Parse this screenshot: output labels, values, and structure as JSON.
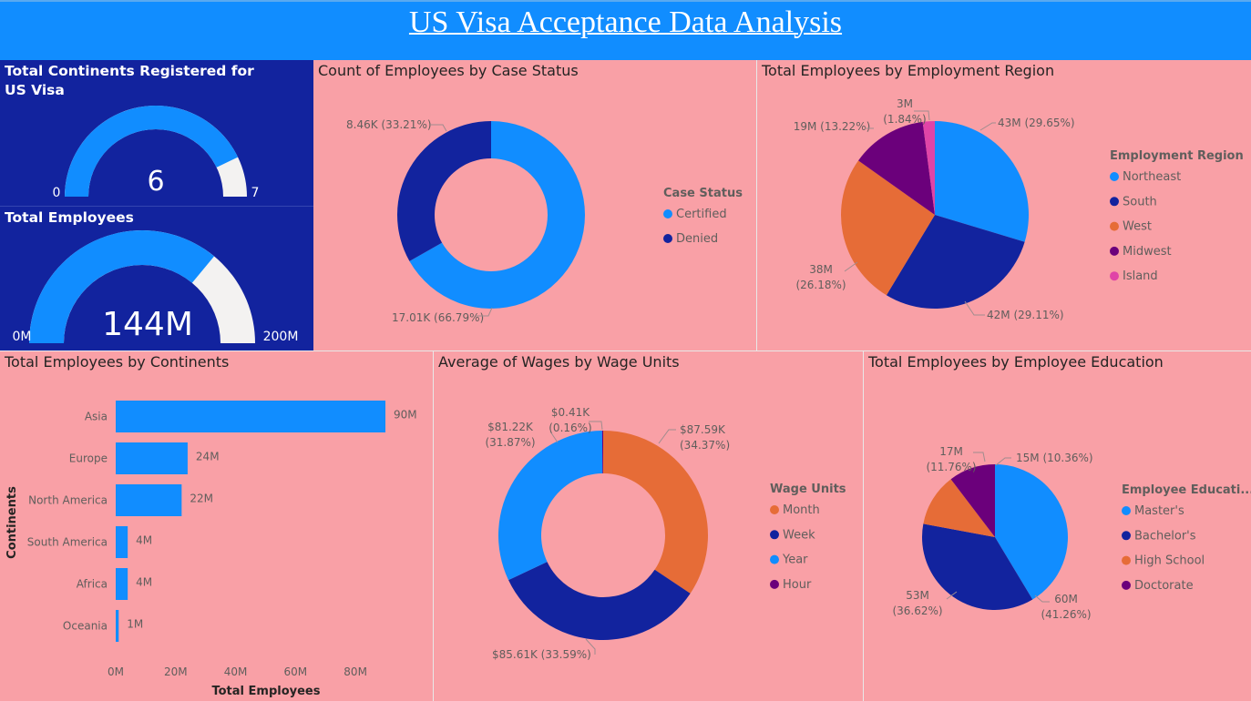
{
  "header": {
    "title": "US Visa Acceptance Data Analysis"
  },
  "colors": {
    "light_blue": "#118DFF",
    "dark_blue": "#12239E",
    "orange": "#E66C37",
    "purple": "#6B007B",
    "magenta": "#E044A7",
    "gauge_empty": "#F3F2F1",
    "background": "#F9A0A6"
  },
  "gauges": [
    {
      "title": "Total Continents Registered for US Visa",
      "value_label": "6",
      "min_label": "0",
      "max_label": "7",
      "value": 6,
      "min": 0,
      "max": 7
    },
    {
      "title": "Total Employees",
      "value_label": "144M",
      "min_label": "0M",
      "max_label": "200M",
      "value": 144,
      "min": 0,
      "max": 200
    }
  ],
  "chart_data": [
    {
      "id": "case_status",
      "type": "donut",
      "title": "Count of Employees by Case Status",
      "legend_title": "Case Status",
      "legend_placement": "right",
      "categories": [
        "Certified",
        "Denied"
      ],
      "values": [
        17.01,
        8.46
      ],
      "units": "K",
      "percents": [
        66.79,
        33.21
      ],
      "data_labels": [
        "17.01K (66.79%)",
        "8.46K (33.21%)"
      ]
    },
    {
      "id": "employment_region",
      "type": "pie",
      "title": "Total Employees by Employment Region",
      "legend_title": "Employment Region",
      "legend_placement": "right",
      "categories": [
        "Northeast",
        "South",
        "West",
        "Midwest",
        "Island"
      ],
      "values": [
        43,
        42,
        38,
        19,
        3
      ],
      "units": "M",
      "percents": [
        29.65,
        29.11,
        26.18,
        13.22,
        1.84
      ],
      "data_labels": [
        [
          "43M (29.65%)"
        ],
        [
          "42M (29.11%)"
        ],
        [
          "38M",
          "(26.18%)"
        ],
        [
          "19M (13.22%)"
        ],
        [
          "3M",
          "(1.84%)"
        ]
      ]
    },
    {
      "id": "continents",
      "type": "bar",
      "orientation": "horizontal",
      "title": "Total Employees by Continents",
      "categories": [
        "Asia",
        "Europe",
        "North America",
        "South America",
        "Africa",
        "Oceania"
      ],
      "values": [
        90,
        24,
        22,
        4,
        4,
        1
      ],
      "data_labels": [
        "90M",
        "24M",
        "22M",
        "4M",
        "4M",
        "1M"
      ],
      "xlabel": "Total Employees",
      "ylabel": "Continents",
      "xlim": [
        0,
        90
      ],
      "x_ticks": [
        0,
        20,
        40,
        60,
        80
      ],
      "x_tick_labels": [
        "0M",
        "20M",
        "40M",
        "60M",
        "80M"
      ]
    },
    {
      "id": "wage_units",
      "type": "donut",
      "title": "Average of Wages by Wage Units",
      "legend_title": "Wage Units",
      "legend_placement": "right",
      "categories": [
        "Month",
        "Week",
        "Year",
        "Hour"
      ],
      "values": [
        87.59,
        85.61,
        81.22,
        0.41
      ],
      "units": "K",
      "percents": [
        34.37,
        33.59,
        31.87,
        0.16
      ],
      "data_labels": [
        [
          "$87.59K",
          "(34.37%)"
        ],
        [
          "$85.61K (33.59%)"
        ],
        [
          "$81.22K",
          "(31.87%)"
        ],
        [
          "$0.41K",
          "(0.16%)"
        ]
      ]
    },
    {
      "id": "education",
      "type": "pie",
      "title": "Total Employees by Employee Education",
      "legend_title": "Employee Educati...",
      "legend_placement": "right",
      "categories": [
        "Master's",
        "Bachelor's",
        "High School",
        "Doctorate"
      ],
      "values": [
        60,
        53,
        17,
        15
      ],
      "units": "M",
      "percents": [
        41.26,
        36.62,
        11.76,
        10.36
      ],
      "data_labels": [
        [
          "60M",
          "(41.26%)"
        ],
        [
          "53M",
          "(36.62%)"
        ],
        [
          "17M",
          "(11.76%)"
        ],
        [
          "15M (10.36%)"
        ]
      ]
    }
  ]
}
